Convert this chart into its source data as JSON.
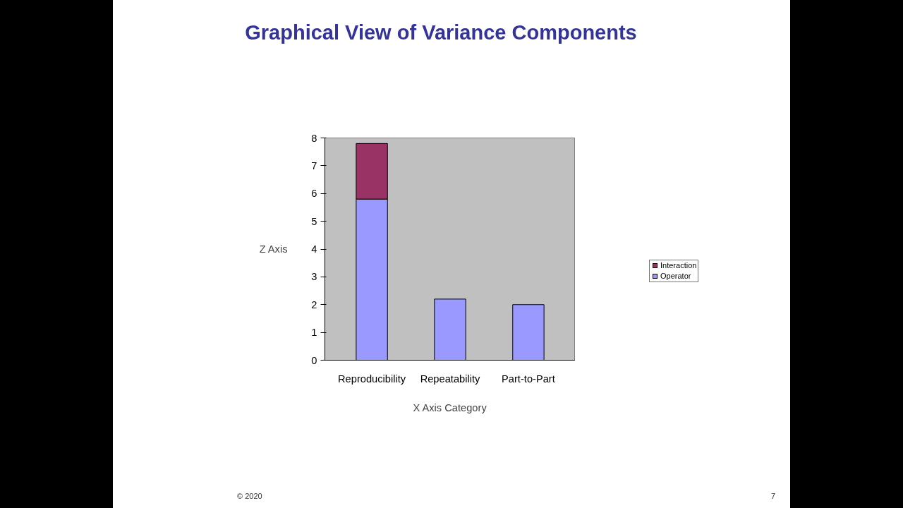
{
  "chart_data": {
    "type": "bar",
    "title": "Graphical View of Variance Components",
    "xlabel": "X Axis Category",
    "ylabel": "Z Axis",
    "categories": [
      "Reproducibility",
      "Repeatability",
      "Part-to-Part"
    ],
    "stacked": true,
    "series": [
      {
        "name": "Operator",
        "color": "#9999ff",
        "values": [
          5.8,
          2.2,
          2.0
        ]
      },
      {
        "name": "Interaction",
        "color": "#993366",
        "values": [
          2.0,
          null,
          null
        ]
      }
    ],
    "ylim": [
      0,
      8
    ],
    "yticks": [
      0,
      1,
      2,
      3,
      4,
      5,
      6,
      7,
      8
    ],
    "grid": false,
    "legend": "right",
    "annotations": [
      "© 2020",
      "7"
    ]
  }
}
